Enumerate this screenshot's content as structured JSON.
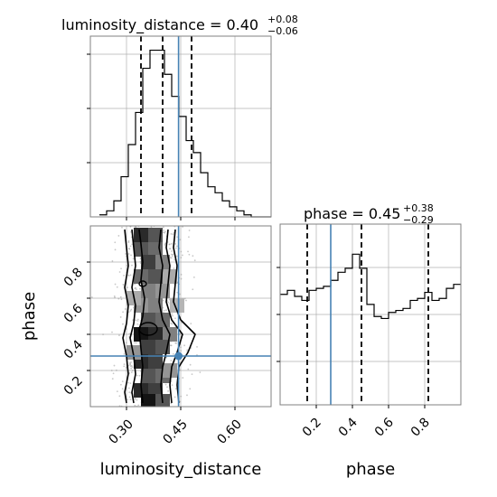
{
  "chart_data": [
    {
      "type": "histogram",
      "panel": "luminosity_distance marginal",
      "title": {
        "param": "luminosity_distance",
        "value": "0.40",
        "plus": "+0.08",
        "minus": "−0.06"
      },
      "xlim": [
        0.2,
        0.7
      ],
      "bin_edges": [
        0.225,
        0.245,
        0.265,
        0.285,
        0.305,
        0.325,
        0.345,
        0.365,
        0.385,
        0.405,
        0.425,
        0.445,
        0.465,
        0.485,
        0.505,
        0.525,
        0.545,
        0.565,
        0.585,
        0.605,
        0.625,
        0.645,
        0.665,
        0.685,
        0.705
      ],
      "values": [
        1,
        3,
        8,
        20,
        36,
        52,
        74,
        83,
        83,
        71,
        60,
        50,
        38,
        32,
        22,
        15,
        12,
        8,
        5,
        3,
        1,
        0,
        0,
        0
      ],
      "ylim": [
        0,
        90
      ],
      "quantiles": [
        0.34,
        0.4,
        0.48
      ],
      "truth": 0.444,
      "grid": true
    },
    {
      "type": "histogram",
      "panel": "phase marginal",
      "title": {
        "param": "phase",
        "value": "0.45",
        "plus": "+0.38",
        "minus": "−0.29"
      },
      "xlim": [
        0.0,
        1.0
      ],
      "bin_edges": [
        0.0,
        0.04,
        0.08,
        0.12,
        0.16,
        0.2,
        0.24,
        0.28,
        0.32,
        0.36,
        0.4,
        0.44,
        0.48,
        0.52,
        0.56,
        0.6,
        0.64,
        0.68,
        0.72,
        0.76,
        0.8,
        0.84,
        0.88,
        0.92,
        0.96,
        1.0
      ],
      "values": [
        55,
        57,
        54,
        52,
        57,
        58,
        59,
        62,
        66,
        68,
        75,
        68,
        50,
        44,
        43,
        46,
        47,
        48,
        52,
        53,
        56,
        52,
        53,
        58,
        60
      ],
      "ylim": [
        0,
        90
      ],
      "quantiles": [
        0.15,
        0.45,
        0.82
      ],
      "truth": 0.28,
      "xticks": [
        "0.2",
        "0.4",
        "0.6",
        "0.8"
      ],
      "xlabel": "phase",
      "grid": true
    },
    {
      "type": "2d-histogram-contour",
      "panel": "phase vs luminosity_distance",
      "x_param": "luminosity_distance",
      "y_param": "phase",
      "xlim": [
        0.2,
        0.7
      ],
      "ylim": [
        0.0,
        1.0
      ],
      "xticks": [
        "0.30",
        "0.45",
        "0.60"
      ],
      "yticks": [
        "0.2",
        "0.4",
        "0.6",
        "0.8"
      ],
      "xlabel": "luminosity_distance",
      "ylabel": "phase",
      "truth": {
        "x": 0.444,
        "y": 0.28
      },
      "density_cells": [
        {
          "x": 0.34,
          "y": 0.95,
          "v": 0.9
        },
        {
          "x": 0.38,
          "y": 0.95,
          "v": 0.7
        },
        {
          "x": 0.34,
          "y": 0.87,
          "v": 0.7
        },
        {
          "x": 0.38,
          "y": 0.87,
          "v": 0.6
        },
        {
          "x": 0.36,
          "y": 0.8,
          "v": 0.8
        },
        {
          "x": 0.4,
          "y": 0.8,
          "v": 0.5
        },
        {
          "x": 0.34,
          "y": 0.72,
          "v": 0.6
        },
        {
          "x": 0.38,
          "y": 0.72,
          "v": 0.7
        },
        {
          "x": 0.36,
          "y": 0.64,
          "v": 0.5
        },
        {
          "x": 0.4,
          "y": 0.64,
          "v": 0.4
        },
        {
          "x": 0.34,
          "y": 0.56,
          "v": 0.4
        },
        {
          "x": 0.38,
          "y": 0.56,
          "v": 0.5
        },
        {
          "x": 0.36,
          "y": 0.48,
          "v": 0.7
        },
        {
          "x": 0.4,
          "y": 0.48,
          "v": 0.6
        },
        {
          "x": 0.34,
          "y": 0.4,
          "v": 1.0
        },
        {
          "x": 0.38,
          "y": 0.4,
          "v": 0.9
        },
        {
          "x": 0.42,
          "y": 0.4,
          "v": 0.5
        },
        {
          "x": 0.36,
          "y": 0.33,
          "v": 0.8
        },
        {
          "x": 0.4,
          "y": 0.33,
          "v": 0.7
        },
        {
          "x": 0.34,
          "y": 0.25,
          "v": 0.9
        },
        {
          "x": 0.38,
          "y": 0.25,
          "v": 0.8
        },
        {
          "x": 0.36,
          "y": 0.17,
          "v": 0.7
        },
        {
          "x": 0.4,
          "y": 0.17,
          "v": 0.6
        },
        {
          "x": 0.34,
          "y": 0.09,
          "v": 0.9
        },
        {
          "x": 0.38,
          "y": 0.09,
          "v": 0.8
        },
        {
          "x": 0.36,
          "y": 0.03,
          "v": 1.0
        },
        {
          "x": 0.4,
          "y": 0.03,
          "v": 0.7
        },
        {
          "x": 0.32,
          "y": 0.6,
          "v": 0.3
        },
        {
          "x": 0.42,
          "y": 0.72,
          "v": 0.3
        },
        {
          "x": 0.42,
          "y": 0.2,
          "v": 0.4
        },
        {
          "x": 0.32,
          "y": 0.3,
          "v": 0.4
        },
        {
          "x": 0.44,
          "y": 0.56,
          "v": 0.25
        }
      ],
      "contours": [
        {
          "level": "inner",
          "left": [
            [
              0.335,
              0.98
            ],
            [
              0.34,
              0.9
            ],
            [
              0.345,
              0.8
            ],
            [
              0.34,
              0.7
            ],
            [
              0.35,
              0.6
            ],
            [
              0.345,
              0.5
            ],
            [
              0.335,
              0.42
            ],
            [
              0.34,
              0.32
            ],
            [
              0.345,
              0.22
            ],
            [
              0.34,
              0.12
            ],
            [
              0.345,
              0.02
            ]
          ],
          "right": [
            [
              0.395,
              0.98
            ],
            [
              0.39,
              0.88
            ],
            [
              0.4,
              0.78
            ],
            [
              0.395,
              0.68
            ],
            [
              0.39,
              0.58
            ],
            [
              0.4,
              0.48
            ],
            [
              0.42,
              0.4
            ],
            [
              0.41,
              0.3
            ],
            [
              0.4,
              0.22
            ],
            [
              0.395,
              0.12
            ],
            [
              0.4,
              0.02
            ]
          ]
        },
        {
          "level": "middle",
          "left": [
            [
              0.315,
              0.98
            ],
            [
              0.32,
              0.88
            ],
            [
              0.325,
              0.78
            ],
            [
              0.315,
              0.66
            ],
            [
              0.325,
              0.56
            ],
            [
              0.32,
              0.46
            ],
            [
              0.31,
              0.38
            ],
            [
              0.32,
              0.28
            ],
            [
              0.325,
              0.18
            ],
            [
              0.315,
              0.08
            ],
            [
              0.32,
              0.02
            ]
          ],
          "right": [
            [
              0.415,
              0.98
            ],
            [
              0.41,
              0.88
            ],
            [
              0.42,
              0.78
            ],
            [
              0.415,
              0.68
            ],
            [
              0.41,
              0.58
            ],
            [
              0.425,
              0.48
            ],
            [
              0.455,
              0.4
            ],
            [
              0.44,
              0.3
            ],
            [
              0.425,
              0.22
            ],
            [
              0.42,
              0.12
            ],
            [
              0.425,
              0.02
            ]
          ]
        },
        {
          "level": "outer",
          "left": [
            [
              0.295,
              0.98
            ],
            [
              0.3,
              0.88
            ],
            [
              0.305,
              0.78
            ],
            [
              0.295,
              0.66
            ],
            [
              0.305,
              0.56
            ],
            [
              0.3,
              0.46
            ],
            [
              0.29,
              0.38
            ],
            [
              0.3,
              0.28
            ],
            [
              0.305,
              0.18
            ],
            [
              0.295,
              0.08
            ],
            [
              0.3,
              0.02
            ]
          ],
          "right": [
            [
              0.435,
              0.98
            ],
            [
              0.43,
              0.88
            ],
            [
              0.44,
              0.78
            ],
            [
              0.435,
              0.68
            ],
            [
              0.43,
              0.58
            ],
            [
              0.45,
              0.48
            ],
            [
              0.49,
              0.4
            ],
            [
              0.47,
              0.3
            ],
            [
              0.445,
              0.22
            ],
            [
              0.44,
              0.12
            ],
            [
              0.445,
              0.02
            ]
          ]
        }
      ],
      "grid": true
    }
  ],
  "colors": {
    "truth": "#4682b4",
    "hist": "#000000",
    "grid": "#b0b0b0",
    "spine": "#808080",
    "scatter": "#9a9a9a"
  }
}
